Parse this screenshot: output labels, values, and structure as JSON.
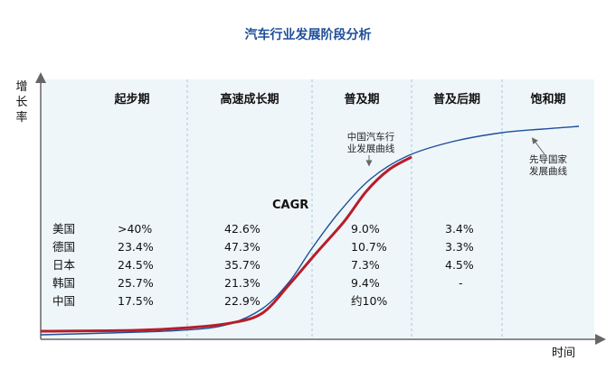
{
  "chart_data": {
    "type": "line",
    "title": "汽车行业发展阶段分析",
    "ylabel": "增长率",
    "xlabel": "时间",
    "stages": [
      "起步期",
      "高速成长期",
      "普及期",
      "普及后期",
      "饱和期"
    ],
    "table_header": "CAGR",
    "countries": [
      "美国",
      "德国",
      "日本",
      "韩国",
      "中国"
    ],
    "cagr": [
      [
        ">40%",
        "42.6%",
        "9.0%",
        "3.4%"
      ],
      [
        "23.4%",
        "47.3%",
        "10.7%",
        "3.3%"
      ],
      [
        "24.5%",
        "35.7%",
        "7.3%",
        "4.5%"
      ],
      [
        "25.7%",
        "21.3%",
        "9.4%",
        "-"
      ],
      [
        "17.5%",
        "22.9%",
        "约10%",
        ""
      ]
    ],
    "series": [
      {
        "name": "先导国家发展曲线",
        "color": "#1f4e9a"
      },
      {
        "name": "中国汽车行业发展曲线",
        "color": "#b81d2a"
      }
    ],
    "annotations": [
      "中国汽车行\n业发展曲线",
      "先导国家\n发展曲线"
    ],
    "colors": {
      "background": "#eef6f9",
      "axis": "#666666",
      "divider": "#a7c9de",
      "title": "#1f4e9a"
    }
  }
}
